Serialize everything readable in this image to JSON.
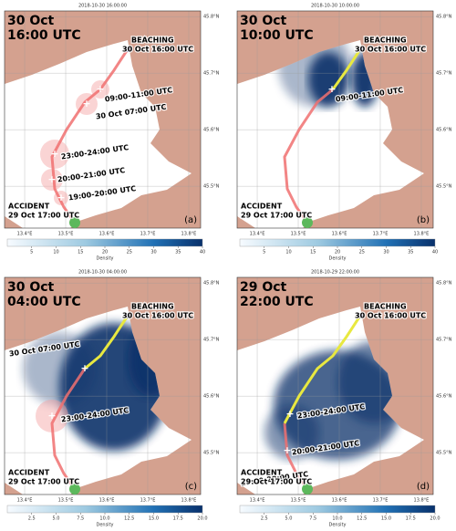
{
  "lon_lim": [
    13.351,
    13.829
  ],
  "lat_lim": [
    45.426,
    45.81
  ],
  "lon_ticks": [
    {
      "value": 13.4,
      "label": "13.4°E"
    },
    {
      "value": 13.5,
      "label": "13.5°E"
    },
    {
      "value": 13.6,
      "label": "13.6°E"
    },
    {
      "value": 13.7,
      "label": "13.7°E"
    },
    {
      "value": 13.8,
      "label": "13.8°E"
    }
  ],
  "lat_ticks": [
    {
      "value": 45.5,
      "label": "45.5°N"
    },
    {
      "value": 45.6,
      "label": "45.6°N"
    },
    {
      "value": 45.7,
      "label": "45.7°N"
    },
    {
      "value": 45.8,
      "label": "45.8°N"
    }
  ],
  "panels": [
    {
      "timestamp": "2018-10-30 16:00:00",
      "headline": [
        "30 Oct",
        "16:00 UTC"
      ],
      "beaching": [
        "BEACHING",
        "30 Oct 16:00 UTC"
      ],
      "accident": [
        "ACCIDENT",
        "29 Oct 17:00 UTC"
      ],
      "time_labels": [
        "09:00-11:00 UTC",
        "30 Oct 07:00 UTC",
        "23:00-24:00 UTC",
        "20:00-21:00 UTC",
        "19:00-20:00 UTC"
      ],
      "letter": "(a)",
      "colorbar_lim": [
        0,
        40
      ],
      "colorbar_ticks": [
        5,
        10,
        15,
        20,
        25,
        30,
        35,
        40
      ],
      "colorbar_label": "Density"
    },
    {
      "timestamp": "2018-10-30 10:00:00",
      "headline": [
        "30 Oct",
        "10:00 UTC"
      ],
      "beaching": [
        "BEACHING",
        "30 Oct 16:00 UTC"
      ],
      "accident": [
        "ACCIDENT",
        "29 Oct 17:00 UTC"
      ],
      "time_labels": [
        "09:00-11:00 UTC"
      ],
      "letter": "(b)",
      "colorbar_lim": [
        0,
        40
      ],
      "colorbar_ticks": [
        5,
        10,
        15,
        20,
        25,
        30,
        35,
        40
      ],
      "colorbar_label": "Density"
    },
    {
      "timestamp": "2018-10-30 04:00:00",
      "headline": [
        "30 Oct",
        "04:00 UTC"
      ],
      "beaching": [
        "BEACHING",
        "30 Oct 16:00 UTC"
      ],
      "accident": [
        "ACCIDENT",
        "29 Oct 17:00 UTC"
      ],
      "time_labels": [
        "30 Oct 07:00 UTC",
        "23:00-24:00 UTC"
      ],
      "letter": "(c)",
      "colorbar_lim": [
        0,
        20
      ],
      "colorbar_ticks": [
        2.5,
        {
          "value": 5,
          "label": "5.0"
        },
        7.5,
        {
          "value": 10,
          "label": "10.0"
        },
        12.5,
        {
          "value": 15,
          "label": "15.0"
        },
        17.5,
        {
          "value": 20,
          "label": "20.0"
        }
      ],
      "colorbar_label": "Density"
    },
    {
      "timestamp": "2018-10-29 22:00:00",
      "headline": [
        "29 Oct",
        "22:00 UTC"
      ],
      "beaching": [
        "BEACHING",
        "30 Oct 16:00 UTC"
      ],
      "accident": [
        "ACCIDENT",
        "29 Oct 17:00 UTC"
      ],
      "time_labels": [
        "23:00-24:00 UTC",
        "20:00-21:00 UTC",
        "19:00-20:00 UTC"
      ],
      "letter": "(d)",
      "colorbar_lim": [
        0,
        20
      ],
      "colorbar_ticks": [
        2.5,
        {
          "value": 5,
          "label": "5.0"
        },
        7.5,
        {
          "value": 10,
          "label": "10.0"
        },
        12.5,
        {
          "value": 15,
          "label": "15.0"
        },
        17.5,
        {
          "value": 20,
          "label": "20.0"
        }
      ],
      "colorbar_label": "Density"
    }
  ]
}
